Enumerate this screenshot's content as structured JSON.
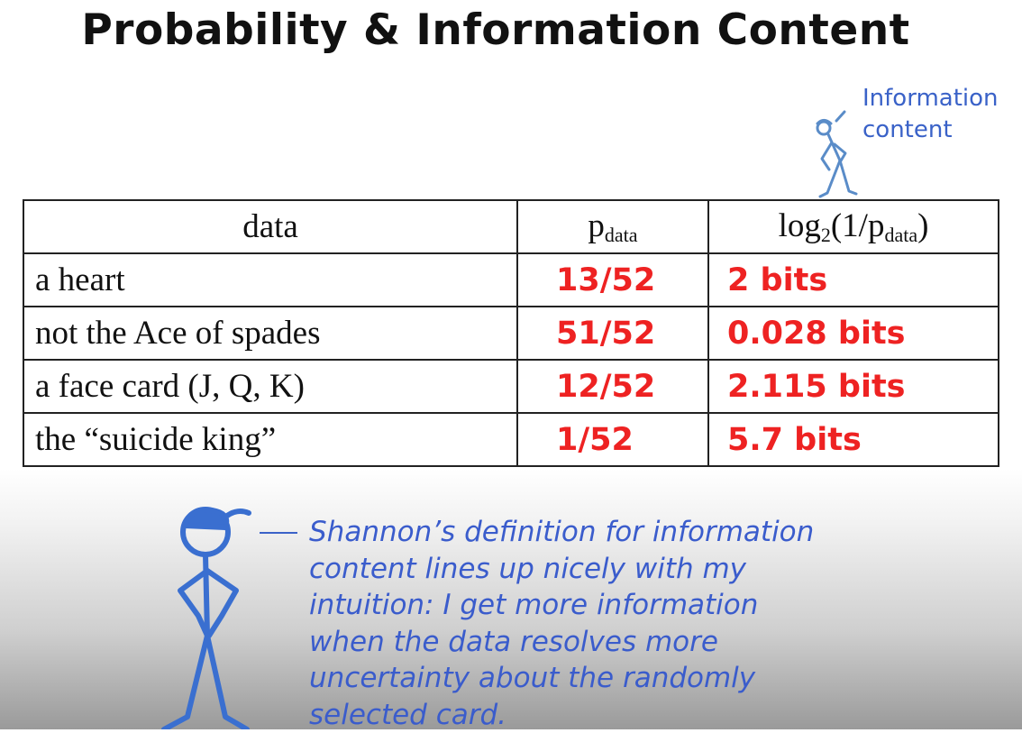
{
  "title": "Probability & Information Content",
  "annotation": {
    "line1": "Information",
    "line2": "content"
  },
  "table": {
    "headers": {
      "data": "data",
      "p_base": "p",
      "p_sub": "data",
      "log_prefix": "log",
      "log_base": "2",
      "log_mid": "(1/p",
      "log_sub": "data",
      "log_suffix": ")"
    },
    "rows": [
      {
        "data": "a heart",
        "p": "13/52",
        "info": "2 bits"
      },
      {
        "data": "not the Ace of spades",
        "p": "51/52",
        "info": "0.028 bits"
      },
      {
        "data": "a face card (J, Q, K)",
        "p": "12/52",
        "info": "2.115 bits"
      },
      {
        "data": "the “suicide king”",
        "p": "1/52",
        "info": "5.7 bits"
      }
    ]
  },
  "quote": {
    "lines": [
      "Shannon’s definition for information",
      "content lines up nicely with my",
      "intuition: I get more information",
      "when the data resolves more",
      "uncertainty about the randomly",
      "selected card."
    ]
  },
  "colors": {
    "accent_blue": "#3a62c8",
    "value_red": "#ee2222"
  }
}
